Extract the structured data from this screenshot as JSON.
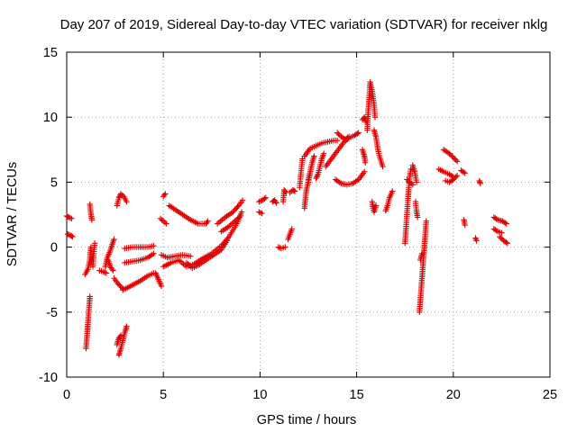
{
  "chart_data": {
    "type": "scatter",
    "title": "Day 207 of 2019, Sidereal Day-to-day VTEC variation (SDTVAR) for receiver nklg",
    "xlabel": "GPS time / hours",
    "ylabel": "SDTVAR / TECUs",
    "xlim": [
      0,
      25
    ],
    "ylim": [
      -10,
      15
    ],
    "xticks": [
      0,
      5,
      10,
      15,
      20,
      25
    ],
    "yticks": [
      -10,
      -5,
      0,
      5,
      10,
      15
    ],
    "xtick_labels": [
      "0",
      "5",
      "10",
      "15",
      "20",
      "25"
    ],
    "ytick_labels": [
      "-10",
      "-5",
      "0",
      "5",
      "10",
      "15"
    ],
    "grid": true,
    "marker": "+",
    "color": "#e00000",
    "segments": [
      [
        [
          0.0,
          2.4
        ],
        [
          0.1,
          2.3
        ],
        [
          0.25,
          2.2
        ]
      ],
      [
        [
          0.05,
          1.0
        ],
        [
          0.2,
          0.9
        ],
        [
          0.3,
          0.8
        ]
      ],
      [
        [
          1.0,
          -7.8
        ],
        [
          1.05,
          -6.8
        ],
        [
          1.1,
          -5.8
        ],
        [
          1.15,
          -4.8
        ],
        [
          1.2,
          -3.8
        ]
      ],
      [
        [
          0.95,
          -2.1
        ],
        [
          1.1,
          -1.7
        ],
        [
          1.2,
          -1.0
        ],
        [
          1.25,
          0.0
        ]
      ],
      [
        [
          1.2,
          3.3
        ],
        [
          1.25,
          2.6
        ],
        [
          1.3,
          2.1
        ]
      ],
      [
        [
          1.35,
          -1.5
        ],
        [
          1.4,
          -0.5
        ],
        [
          1.45,
          0.3
        ]
      ],
      [
        [
          1.7,
          -1.8
        ],
        [
          1.9,
          -1.9
        ],
        [
          2.05,
          -2.0
        ]
      ],
      [
        [
          2.0,
          -1.5
        ],
        [
          2.1,
          -0.8
        ],
        [
          2.25,
          -0.3
        ],
        [
          2.35,
          0.2
        ],
        [
          2.45,
          0.6
        ]
      ],
      [
        [
          2.15,
          -1.0
        ],
        [
          2.25,
          -1.5
        ],
        [
          2.4,
          -1.8
        ]
      ],
      [
        [
          2.45,
          -2.4
        ],
        [
          2.65,
          -2.8
        ],
        [
          2.9,
          -3.2
        ]
      ],
      [
        [
          2.6,
          3.2
        ],
        [
          2.7,
          3.8
        ],
        [
          2.8,
          4.1
        ],
        [
          2.95,
          3.9
        ],
        [
          3.1,
          3.5
        ]
      ],
      [
        [
          2.7,
          -8.3
        ],
        [
          2.8,
          -7.8
        ],
        [
          2.9,
          -7.2
        ],
        [
          3.0,
          -6.6
        ],
        [
          3.1,
          -6.1
        ]
      ],
      [
        [
          2.6,
          -7.5
        ],
        [
          2.7,
          -7.0
        ],
        [
          2.8,
          -6.8
        ]
      ],
      [
        [
          3.0,
          -0.1
        ],
        [
          3.4,
          0.0
        ],
        [
          3.8,
          0.0
        ],
        [
          4.2,
          0.0
        ],
        [
          4.5,
          0.1
        ]
      ],
      [
        [
          3.0,
          -1.2
        ],
        [
          3.4,
          -1.1
        ],
        [
          3.8,
          -1.0
        ],
        [
          4.2,
          -0.8
        ],
        [
          4.5,
          -0.5
        ]
      ],
      [
        [
          2.9,
          -3.3
        ],
        [
          3.3,
          -3.0
        ],
        [
          3.8,
          -2.6
        ],
        [
          4.2,
          -2.2
        ],
        [
          4.5,
          -2.0
        ]
      ],
      [
        [
          4.6,
          -2.0
        ],
        [
          4.75,
          -2.5
        ],
        [
          4.9,
          -3.0
        ]
      ],
      [
        [
          5.0,
          3.9
        ],
        [
          5.1,
          4.1
        ]
      ],
      [
        [
          4.85,
          2.2
        ],
        [
          5.0,
          2.0
        ],
        [
          5.15,
          1.8
        ]
      ],
      [
        [
          4.9,
          -0.6
        ],
        [
          5.2,
          -0.8
        ],
        [
          5.6,
          -0.7
        ],
        [
          6.0,
          -0.6
        ],
        [
          6.4,
          -0.7
        ]
      ],
      [
        [
          5.3,
          3.2
        ],
        [
          5.6,
          2.9
        ],
        [
          6.0,
          2.5
        ],
        [
          6.4,
          2.1
        ],
        [
          6.8,
          1.8
        ],
        [
          7.2,
          1.8
        ],
        [
          7.3,
          2.0
        ]
      ],
      [
        [
          5.0,
          -1.5
        ],
        [
          5.4,
          -1.2
        ],
        [
          5.8,
          -1.0
        ],
        [
          6.2,
          -1.5
        ],
        [
          6.6,
          -1.3
        ],
        [
          7.0,
          -0.9
        ],
        [
          7.5,
          -0.5
        ],
        [
          8.0,
          0.1
        ],
        [
          8.4,
          0.8
        ],
        [
          8.8,
          1.8
        ],
        [
          9.05,
          2.7
        ]
      ],
      [
        [
          6.2,
          -1.2
        ],
        [
          6.5,
          -1.6
        ],
        [
          6.8,
          -1.4
        ],
        [
          7.2,
          -1.0
        ],
        [
          7.6,
          -0.6
        ],
        [
          8.0,
          -0.2
        ],
        [
          8.3,
          0.5
        ]
      ],
      [
        [
          7.8,
          1.8
        ],
        [
          8.2,
          2.3
        ],
        [
          8.6,
          2.7
        ],
        [
          8.9,
          3.2
        ],
        [
          9.1,
          3.6
        ]
      ],
      [
        [
          8.0,
          1.2
        ],
        [
          8.4,
          1.6
        ],
        [
          8.7,
          2.0
        ],
        [
          9.0,
          2.4
        ]
      ],
      [
        [
          9.95,
          3.5
        ],
        [
          10.1,
          3.6
        ],
        [
          10.3,
          3.8
        ]
      ],
      [
        [
          9.95,
          2.7
        ],
        [
          10.1,
          2.6
        ]
      ],
      [
        [
          10.65,
          3.5
        ],
        [
          10.75,
          3.6
        ],
        [
          10.85,
          3.4
        ]
      ],
      [
        [
          10.95,
          0.0
        ],
        [
          11.1,
          -0.1
        ],
        [
          11.3,
          0.0
        ]
      ],
      [
        [
          11.2,
          3.5
        ],
        [
          11.25,
          4.4
        ],
        [
          11.35,
          4.2
        ]
      ],
      [
        [
          11.55,
          4.2
        ],
        [
          11.7,
          4.4
        ],
        [
          11.8,
          4.3
        ]
      ],
      [
        [
          11.45,
          0.6
        ],
        [
          11.55,
          1.0
        ],
        [
          11.65,
          1.4
        ]
      ],
      [
        [
          12.05,
          4.6
        ],
        [
          12.1,
          5.4
        ],
        [
          12.15,
          6.2
        ],
        [
          12.2,
          6.8
        ]
      ],
      [
        [
          12.3,
          3.0
        ],
        [
          12.35,
          3.7
        ],
        [
          12.4,
          4.4
        ],
        [
          12.5,
          5.0
        ],
        [
          12.6,
          5.8
        ]
      ],
      [
        [
          12.3,
          7.0
        ],
        [
          12.6,
          7.6
        ],
        [
          12.9,
          7.8
        ],
        [
          13.2,
          8.0
        ],
        [
          13.5,
          8.1
        ],
        [
          13.8,
          8.2
        ],
        [
          14.0,
          8.2
        ]
      ],
      [
        [
          12.5,
          5.2
        ],
        [
          12.6,
          5.8
        ],
        [
          12.7,
          6.5
        ],
        [
          12.8,
          7.0
        ]
      ],
      [
        [
          12.9,
          5.3
        ],
        [
          13.0,
          5.6
        ],
        [
          13.1,
          6.2
        ],
        [
          13.2,
          6.8
        ],
        [
          13.3,
          7.2
        ]
      ],
      [
        [
          13.4,
          6.2
        ],
        [
          13.7,
          6.8
        ],
        [
          14.0,
          7.4
        ],
        [
          14.3,
          8.0
        ],
        [
          14.6,
          8.4
        ],
        [
          14.9,
          8.6
        ],
        [
          15.1,
          8.8
        ]
      ],
      [
        [
          13.9,
          5.2
        ],
        [
          14.2,
          4.9
        ],
        [
          14.5,
          4.8
        ],
        [
          14.8,
          4.9
        ],
        [
          15.1,
          5.2
        ],
        [
          15.4,
          5.8
        ]
      ],
      [
        [
          14.0,
          8.8
        ],
        [
          14.2,
          8.5
        ],
        [
          14.4,
          8.3
        ],
        [
          14.6,
          8.5
        ]
      ],
      [
        [
          15.3,
          9.8
        ],
        [
          15.4,
          10.0
        ],
        [
          15.5,
          9.6
        ]
      ],
      [
        [
          15.55,
          9.0
        ],
        [
          15.6,
          10.5
        ],
        [
          15.65,
          11.5
        ],
        [
          15.7,
          12.7
        ],
        [
          15.8,
          12.0
        ],
        [
          15.9,
          11.0
        ],
        [
          15.95,
          10.0
        ]
      ],
      [
        [
          15.9,
          9.0
        ],
        [
          16.0,
          8.5
        ],
        [
          16.1,
          7.5
        ],
        [
          16.2,
          6.9
        ],
        [
          16.35,
          6.2
        ]
      ],
      [
        [
          15.3,
          7.5
        ],
        [
          15.4,
          7.0
        ],
        [
          15.45,
          6.5
        ]
      ],
      [
        [
          15.8,
          3.5
        ],
        [
          15.85,
          3.0
        ],
        [
          15.9,
          2.7
        ],
        [
          16.0,
          3.2
        ]
      ],
      [
        [
          16.5,
          2.8
        ],
        [
          16.6,
          3.2
        ],
        [
          16.7,
          3.8
        ],
        [
          16.85,
          4.3
        ]
      ],
      [
        [
          17.5,
          0.3
        ],
        [
          17.55,
          1.3
        ],
        [
          17.6,
          2.5
        ],
        [
          17.65,
          3.6
        ],
        [
          17.7,
          4.6
        ],
        [
          17.75,
          5.4
        ],
        [
          17.8,
          6.0
        ]
      ],
      [
        [
          17.9,
          6.3
        ],
        [
          18.0,
          5.8
        ],
        [
          18.1,
          5.0
        ]
      ],
      [
        [
          17.6,
          5.2
        ],
        [
          17.75,
          5.0
        ],
        [
          17.9,
          4.8
        ]
      ],
      [
        [
          18.05,
          3.5
        ],
        [
          18.1,
          2.7
        ],
        [
          18.15,
          2.3
        ]
      ],
      [
        [
          18.25,
          -5.0
        ],
        [
          18.3,
          -4.0
        ],
        [
          18.35,
          -3.0
        ],
        [
          18.4,
          -2.0
        ],
        [
          18.45,
          -1.0
        ],
        [
          18.5,
          0.0
        ],
        [
          18.55,
          1.0
        ],
        [
          18.6,
          2.0
        ]
      ],
      [
        [
          18.3,
          -1.0
        ],
        [
          18.38,
          -0.5
        ]
      ],
      [
        [
          19.5,
          7.5
        ],
        [
          19.8,
          7.2
        ],
        [
          20.0,
          6.9
        ],
        [
          20.2,
          6.6
        ]
      ],
      [
        [
          19.25,
          6.0
        ],
        [
          19.5,
          5.8
        ],
        [
          19.8,
          5.6
        ],
        [
          20.0,
          5.4
        ]
      ],
      [
        [
          19.6,
          5.1
        ],
        [
          19.8,
          5.0
        ],
        [
          20.0,
          5.2
        ],
        [
          20.2,
          5.5
        ]
      ],
      [
        [
          20.4,
          5.9
        ],
        [
          20.6,
          5.7
        ]
      ],
      [
        [
          20.55,
          2.1
        ],
        [
          20.6,
          1.7
        ]
      ],
      [
        [
          21.15,
          0.7
        ],
        [
          21.2,
          0.5
        ]
      ],
      [
        [
          21.35,
          5.1
        ],
        [
          21.4,
          4.9
        ]
      ],
      [
        [
          22.1,
          2.3
        ],
        [
          22.3,
          2.1
        ],
        [
          22.55,
          2.0
        ],
        [
          22.75,
          1.8
        ]
      ],
      [
        [
          22.1,
          1.4
        ],
        [
          22.3,
          1.2
        ],
        [
          22.5,
          1.1
        ]
      ],
      [
        [
          22.4,
          0.8
        ],
        [
          22.6,
          0.5
        ],
        [
          22.8,
          0.3
        ]
      ]
    ]
  }
}
